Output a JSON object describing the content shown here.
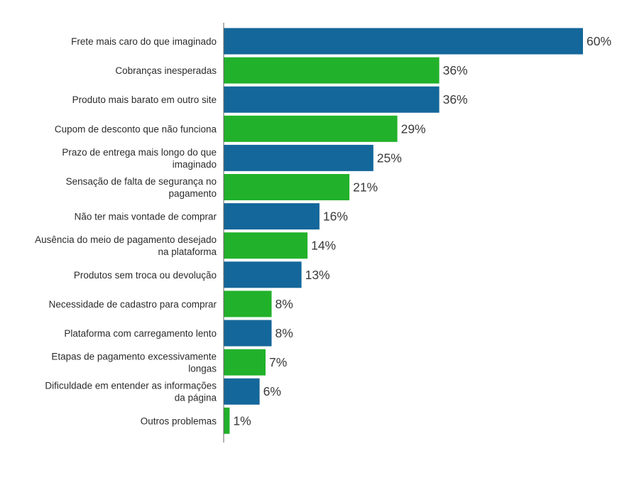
{
  "chart_data": {
    "type": "bar",
    "orientation": "horizontal",
    "categories": [
      [
        "Frete mais caro do que imaginado"
      ],
      [
        "Cobranças inesperadas"
      ],
      [
        "Produto mais barato em outro site"
      ],
      [
        "Cupom de desconto que não funciona"
      ],
      [
        "Prazo de entrega mais longo do que",
        "imaginado"
      ],
      [
        "Sensação de falta de segurança no",
        "pagamento"
      ],
      [
        "Não ter mais vontade de comprar"
      ],
      [
        "Ausência do meio de pagamento desejado",
        "na plataforma"
      ],
      [
        "Produtos sem troca ou devolução"
      ],
      [
        "Necessidade de cadastro para comprar"
      ],
      [
        "Plataforma com carregamento lento"
      ],
      [
        "Etapas de pagamento excessivamente",
        "longas"
      ],
      [
        "Dificuldade em entender as informações",
        "da página"
      ],
      [
        "Outros problemas"
      ]
    ],
    "values": [
      60,
      36,
      36,
      29,
      25,
      21,
      16,
      14,
      13,
      8,
      8,
      7,
      6,
      1
    ],
    "value_labels": [
      "60%",
      "36%",
      "36%",
      "29%",
      "25%",
      "21%",
      "16%",
      "14%",
      "13%",
      "8%",
      "8%",
      "7%",
      "6%",
      "1%"
    ],
    "xlim": [
      0,
      60
    ],
    "grid": false,
    "legend": "none",
    "colors": [
      "#14679a",
      "#22b12b"
    ]
  }
}
